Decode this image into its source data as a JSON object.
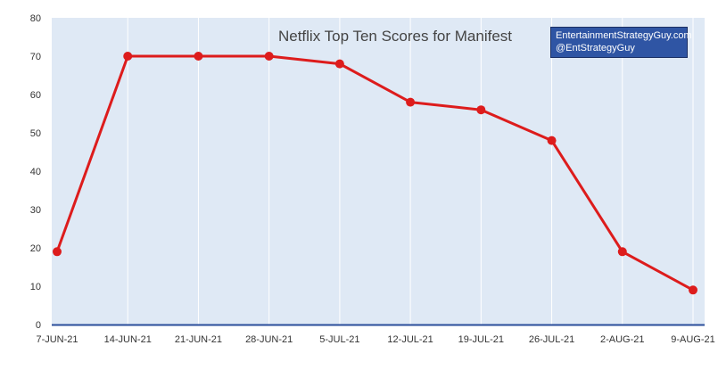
{
  "chart_data": {
    "type": "line",
    "title": "Netflix Top Ten Scores for Manifest",
    "credit": [
      "EntertainmentStrategyGuy.com",
      "@EntStrategyGuy"
    ],
    "categories": [
      "7-JUN-21",
      "14-JUN-21",
      "21-JUN-21",
      "28-JUN-21",
      "5-JUL-21",
      "12-JUL-21",
      "19-JUL-21",
      "26-JUL-21",
      "2-AUG-21",
      "9-AUG-21"
    ],
    "values": [
      19,
      70,
      70,
      70,
      68,
      58,
      56,
      48,
      19,
      9
    ],
    "yticks": [
      0,
      10,
      20,
      30,
      40,
      50,
      60,
      70,
      80
    ],
    "ylim": [
      0,
      80
    ],
    "xlabel": "",
    "ylabel": "",
    "grid": "vertical",
    "colors": {
      "line": "#dd1c1c",
      "plot_background": "#dfe9f5",
      "axis": "#2a4d9a",
      "grid": "#ffffff",
      "credit_box": "#2f55a4"
    }
  }
}
